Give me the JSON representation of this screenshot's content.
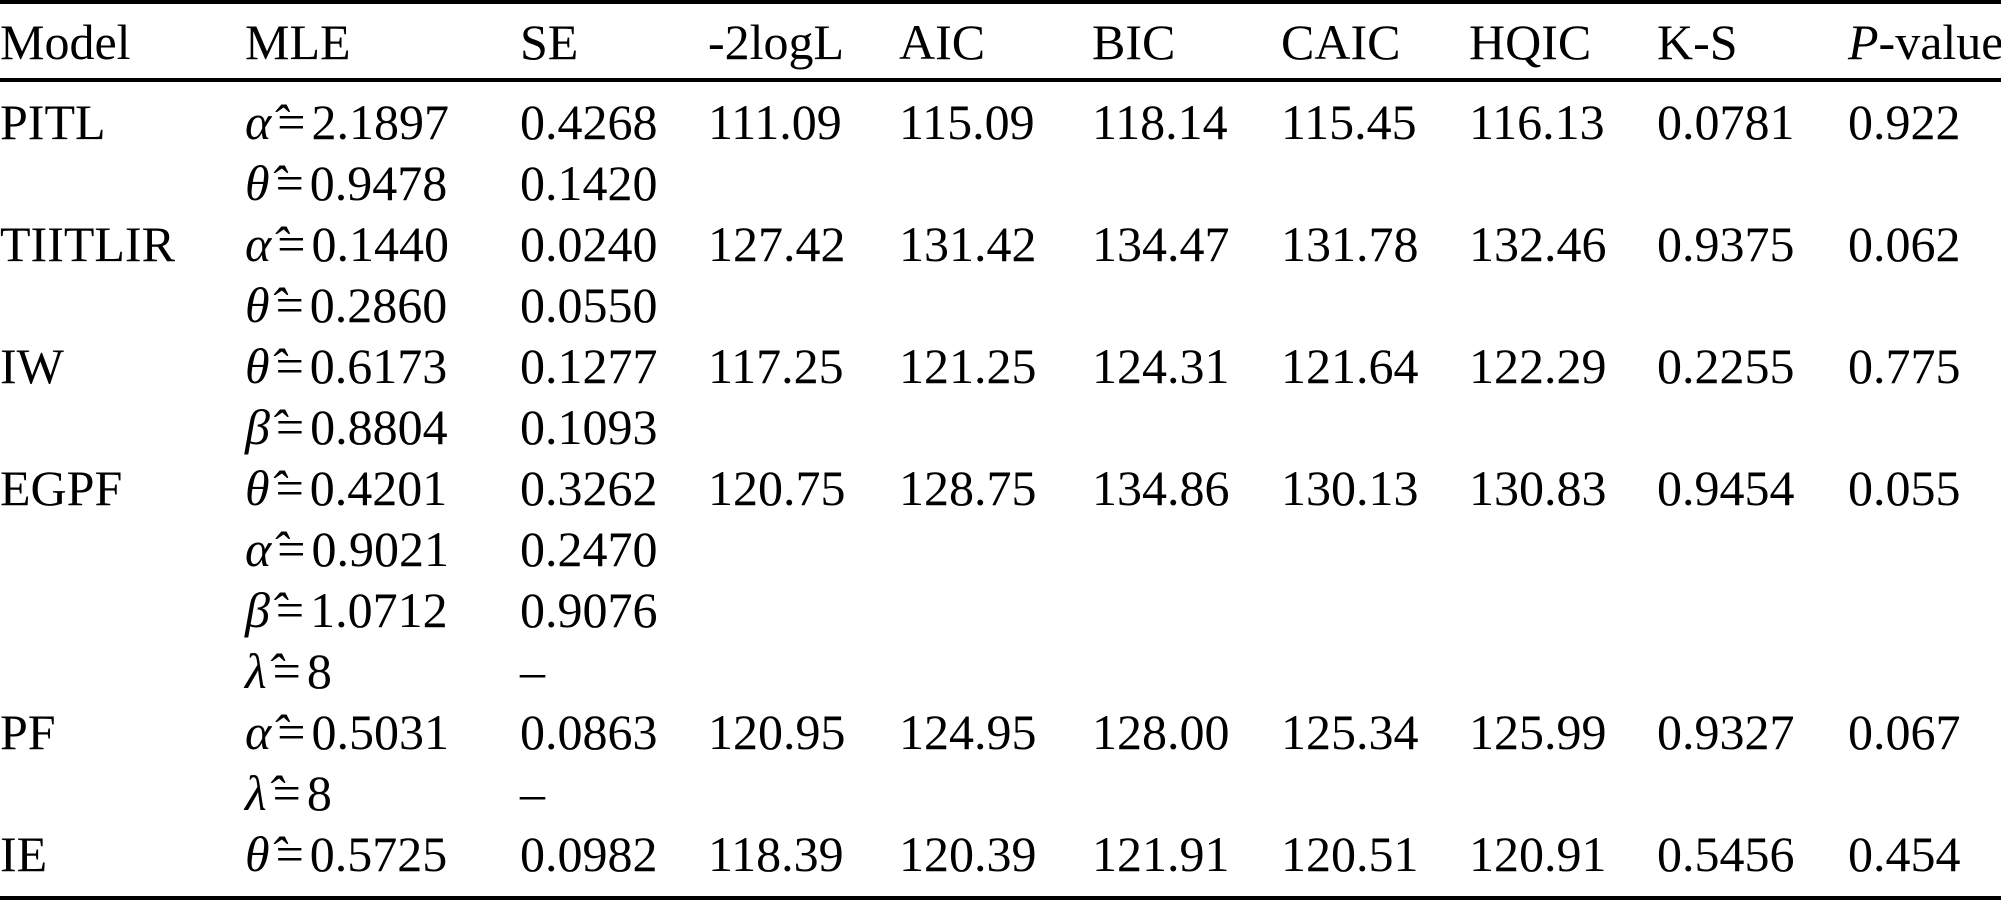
{
  "table": {
    "headers": {
      "model": "Model",
      "mle": "MLE",
      "se": "SE",
      "m2logl": "-2logL",
      "aic": "AIC",
      "bic": "BIC",
      "caic": "CAIC",
      "hqic": "HQIC",
      "ks": "K-S",
      "pvalue_italic": "P",
      "pvalue_rest": "-value"
    },
    "equals": "=",
    "models": [
      {
        "name": "PITL",
        "m2logl": "111.09",
        "aic": "115.09",
        "bic": "118.14",
        "caic": "115.45",
        "hqic": "116.13",
        "ks": "0.0781",
        "pvalue": "0.922",
        "params": [
          {
            "symbol": "α̂",
            "value": "2.1897",
            "se": "0.4268"
          },
          {
            "symbol": "θ̂",
            "value": "0.9478",
            "se": "0.1420"
          }
        ]
      },
      {
        "name": "TIITLIR",
        "m2logl": "127.42",
        "aic": "131.42",
        "bic": "134.47",
        "caic": "131.78",
        "hqic": "132.46",
        "ks": "0.9375",
        "pvalue": "0.062",
        "params": [
          {
            "symbol": "α̂",
            "value": "0.1440",
            "se": "0.0240"
          },
          {
            "symbol": "θ̂",
            "value": "0.2860",
            "se": "0.0550"
          }
        ]
      },
      {
        "name": "IW",
        "m2logl": "117.25",
        "aic": "121.25",
        "bic": "124.31",
        "caic": "121.64",
        "hqic": "122.29",
        "ks": "0.2255",
        "pvalue": "0.775",
        "params": [
          {
            "symbol": "θ̂",
            "value": "0.6173",
            "se": "0.1277"
          },
          {
            "symbol": "β̂",
            "value": "0.8804",
            "se": "0.1093"
          }
        ]
      },
      {
        "name": "EGPF",
        "m2logl": "120.75",
        "aic": "128.75",
        "bic": "134.86",
        "caic": "130.13",
        "hqic": "130.83",
        "ks": "0.9454",
        "pvalue": "0.055",
        "params": [
          {
            "symbol": "θ̂",
            "value": "0.4201",
            "se": "0.3262"
          },
          {
            "symbol": "α̂",
            "value": "0.9021",
            "se": "0.2470"
          },
          {
            "symbol": "β̂",
            "value": "1.0712",
            "se": "0.9076"
          },
          {
            "symbol": "λ̂",
            "value": "8",
            "se": "–"
          }
        ]
      },
      {
        "name": "PF",
        "m2logl": "120.95",
        "aic": "124.95",
        "bic": "128.00",
        "caic": "125.34",
        "hqic": "125.99",
        "ks": "0.9327",
        "pvalue": "0.067",
        "params": [
          {
            "symbol": "α̂",
            "value": "0.5031",
            "se": "0.0863"
          },
          {
            "symbol": "λ̂",
            "value": "8",
            "se": "–"
          }
        ]
      },
      {
        "name": "IE",
        "m2logl": "118.39",
        "aic": "120.39",
        "bic": "121.91",
        "caic": "120.51",
        "hqic": "120.91",
        "ks": "0.5456",
        "pvalue": "0.454",
        "params": [
          {
            "symbol": "θ̂",
            "value": "0.5725",
            "se": "0.0982"
          }
        ]
      }
    ]
  }
}
